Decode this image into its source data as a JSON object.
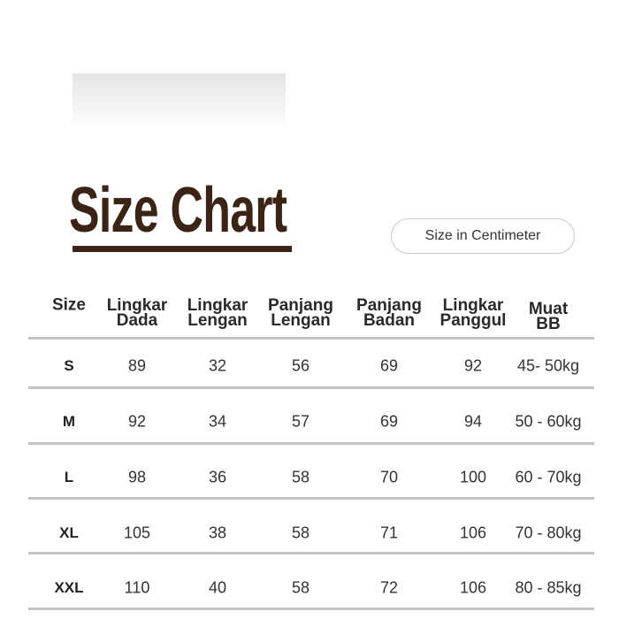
{
  "title": "Size Chart",
  "badge": "Size in Centimeter",
  "colors": {
    "title": "#3b2416",
    "rule": "#c3c3c3"
  },
  "headers": [
    [
      "Size",
      ""
    ],
    [
      "Lingkar",
      "Dada"
    ],
    [
      "Lingkar",
      "Lengan"
    ],
    [
      "Panjang",
      "Lengan"
    ],
    [
      "Panjang",
      "Badan"
    ],
    [
      "Lingkar",
      "Panggul"
    ],
    [
      "Muat",
      "BB"
    ]
  ],
  "rows": [
    [
      "S",
      "89",
      "32",
      "56",
      "69",
      "92",
      "45- 50kg"
    ],
    [
      "M",
      "92",
      "34",
      "57",
      "69",
      "94",
      "50 - 60kg"
    ],
    [
      "L",
      "98",
      "36",
      "58",
      "70",
      "100",
      "60 - 70kg"
    ],
    [
      "XL",
      "105",
      "38",
      "58",
      "71",
      "106",
      "70 - 80kg"
    ],
    [
      "XXL",
      "110",
      "40",
      "58",
      "72",
      "106",
      "80 - 85kg"
    ]
  ]
}
